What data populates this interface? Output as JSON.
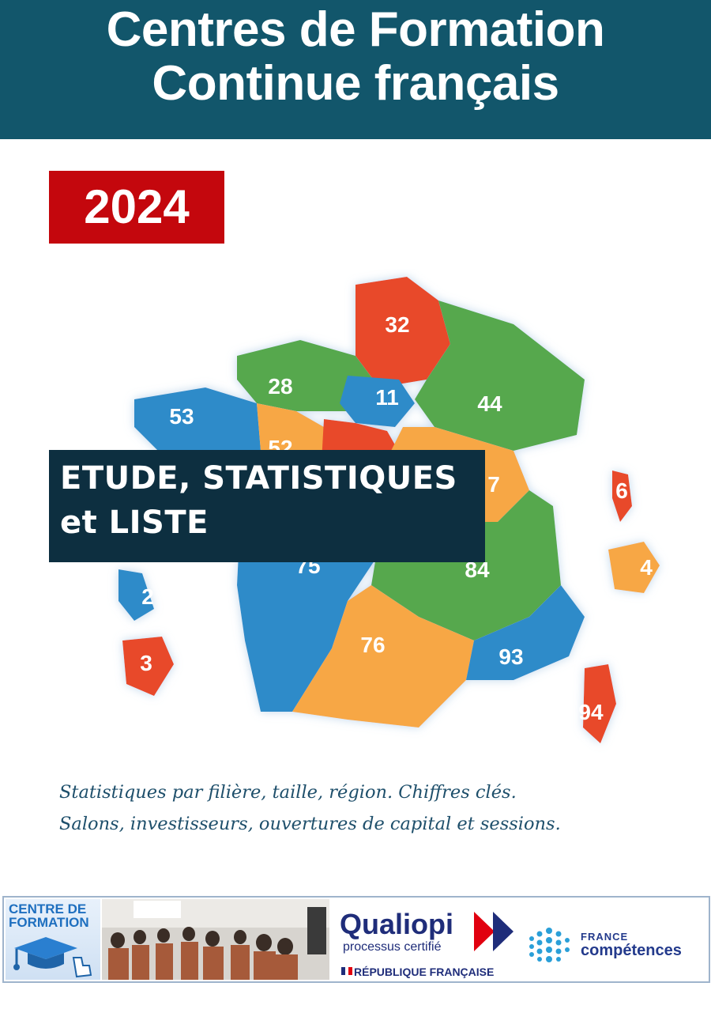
{
  "header": {
    "line1": "Centres de Formation",
    "line2": "Continue français"
  },
  "year": "2024",
  "colors": {
    "header_bg": "#12566b",
    "year_bg": "#c4070d",
    "study_bg": "#0d2f40",
    "map_blue": "#2e8bc9",
    "map_green": "#56a84e",
    "map_orange": "#f7a745",
    "map_red": "#e8492c"
  },
  "map": {
    "regions": [
      {
        "value": "32",
        "color": "red"
      },
      {
        "value": "28",
        "color": "green"
      },
      {
        "value": "11",
        "color": "blue"
      },
      {
        "value": "44",
        "color": "green"
      },
      {
        "value": "53",
        "color": "blue"
      },
      {
        "value": "52",
        "color": "orange"
      },
      {
        "value": "7",
        "color": "orange"
      },
      {
        "value": "75",
        "color": "blue"
      },
      {
        "value": "84",
        "color": "green"
      },
      {
        "value": "76",
        "color": "orange"
      },
      {
        "value": "93",
        "color": "blue"
      },
      {
        "value": "94",
        "color": "red"
      },
      {
        "value": "2",
        "color": "blue"
      },
      {
        "value": "3",
        "color": "red"
      },
      {
        "value": "6",
        "color": "red"
      },
      {
        "value": "4",
        "color": "orange"
      }
    ]
  },
  "study": {
    "line1": "ETUDE, STATISTIQUES",
    "line2": "et LISTE"
  },
  "description": {
    "line1": "Statistiques par filière, taille, région. Chiffres clés.",
    "line2": "Salons, investisseurs, ouvertures de capital et sessions."
  },
  "footer": {
    "centre_line1": "CENTRE DE",
    "centre_line2": "FORMATION",
    "qualiopi_title": "Qualiopi",
    "qualiopi_subtitle": "processus certifié",
    "republique": "RÉPUBLIQUE FRANÇAISE",
    "fc_line1": "FRANCE",
    "fc_line2": "compétences"
  }
}
